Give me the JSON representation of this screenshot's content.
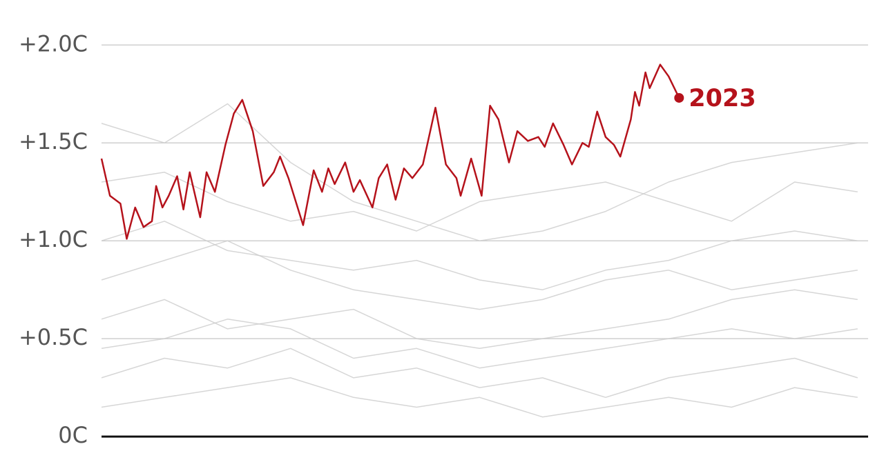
{
  "chart_data": {
    "type": "line",
    "xlim": [
      1,
      366
    ],
    "ylim": [
      -0.13,
      2.23
    ],
    "yticks": [
      {
        "value": 0,
        "label": "0C"
      },
      {
        "value": 0.5,
        "label": "+0.5C"
      },
      {
        "value": 1.0,
        "label": "+1.0C"
      },
      {
        "value": 1.5,
        "label": "+1.5C"
      },
      {
        "value": 2.0,
        "label": "+2.0C"
      }
    ],
    "grid": true,
    "series": [
      {
        "color": "#cccccc",
        "x": [
          1,
          31,
          61,
          91,
          121,
          151,
          181,
          211,
          241,
          271,
          301,
          331,
          361
        ],
        "values": [
          1.6,
          1.5,
          1.7,
          1.4,
          1.2,
          1.1,
          1.0,
          1.05,
          1.15,
          1.3,
          1.4,
          1.45,
          1.5
        ]
      },
      {
        "color": "#cccccc",
        "x": [
          1,
          31,
          61,
          91,
          121,
          151,
          181,
          211,
          241,
          271,
          301,
          331,
          361
        ],
        "values": [
          1.0,
          1.1,
          0.95,
          0.9,
          0.85,
          0.9,
          0.8,
          0.75,
          0.85,
          0.9,
          1.0,
          1.05,
          1.0
        ]
      },
      {
        "color": "#cccccc",
        "x": [
          1,
          31,
          61,
          91,
          121,
          151,
          181,
          211,
          241,
          271,
          301,
          331,
          361
        ],
        "values": [
          0.6,
          0.7,
          0.55,
          0.6,
          0.65,
          0.5,
          0.45,
          0.5,
          0.55,
          0.6,
          0.7,
          0.75,
          0.7
        ]
      },
      {
        "color": "#cccccc",
        "x": [
          1,
          31,
          61,
          91,
          121,
          151,
          181,
          211,
          241,
          271,
          301,
          331,
          361
        ],
        "values": [
          0.3,
          0.4,
          0.35,
          0.45,
          0.3,
          0.35,
          0.25,
          0.3,
          0.2,
          0.3,
          0.35,
          0.4,
          0.3
        ]
      },
      {
        "color": "#cccccc",
        "x": [
          1,
          31,
          61,
          91,
          121,
          151,
          181,
          211,
          241,
          271,
          301,
          331,
          361
        ],
        "values": [
          0.15,
          0.2,
          0.25,
          0.3,
          0.2,
          0.15,
          0.2,
          0.1,
          0.15,
          0.2,
          0.15,
          0.25,
          0.2
        ]
      },
      {
        "color": "#cccccc",
        "x": [
          1,
          31,
          61,
          91,
          121,
          151,
          181,
          211,
          241,
          271,
          301,
          331,
          361
        ],
        "values": [
          0.8,
          0.9,
          1.0,
          0.85,
          0.75,
          0.7,
          0.65,
          0.7,
          0.8,
          0.85,
          0.75,
          0.8,
          0.85
        ]
      },
      {
        "color": "#cccccc",
        "x": [
          1,
          31,
          61,
          91,
          121,
          151,
          181,
          211,
          241,
          271,
          301,
          331,
          361
        ],
        "values": [
          1.3,
          1.35,
          1.2,
          1.1,
          1.15,
          1.05,
          1.2,
          1.25,
          1.3,
          1.2,
          1.1,
          1.3,
          1.25
        ]
      },
      {
        "color": "#cccccc",
        "x": [
          1,
          31,
          61,
          91,
          121,
          151,
          181,
          211,
          241,
          271,
          301,
          331,
          361
        ],
        "values": [
          0.45,
          0.5,
          0.6,
          0.55,
          0.4,
          0.45,
          0.35,
          0.4,
          0.45,
          0.5,
          0.55,
          0.5,
          0.55
        ]
      },
      {
        "name": "2023",
        "color": "#b5121b",
        "x": [
          1,
          5,
          10,
          13,
          17,
          21,
          25,
          27,
          30,
          33,
          37,
          40,
          43,
          48,
          51,
          55,
          60,
          64,
          68,
          73,
          78,
          83,
          86,
          90,
          97,
          102,
          106,
          109,
          112,
          117,
          121,
          124,
          130,
          133,
          137,
          141,
          145,
          149,
          154,
          160,
          165,
          170,
          172,
          177,
          182,
          186,
          190,
          195,
          199,
          204,
          209,
          212,
          216,
          221,
          225,
          230,
          233,
          237,
          241,
          245,
          248,
          253,
          255,
          257,
          260,
          262,
          267,
          271,
          276
        ],
        "values": [
          1.42,
          1.23,
          1.19,
          1.01,
          1.17,
          1.07,
          1.1,
          1.28,
          1.17,
          1.23,
          1.33,
          1.16,
          1.35,
          1.12,
          1.35,
          1.25,
          1.49,
          1.65,
          1.72,
          1.56,
          1.28,
          1.35,
          1.43,
          1.32,
          1.08,
          1.36,
          1.25,
          1.37,
          1.29,
          1.4,
          1.25,
          1.31,
          1.17,
          1.32,
          1.39,
          1.21,
          1.37,
          1.32,
          1.39,
          1.68,
          1.39,
          1.32,
          1.23,
          1.42,
          1.23,
          1.69,
          1.62,
          1.4,
          1.56,
          1.51,
          1.53,
          1.48,
          1.6,
          1.49,
          1.39,
          1.5,
          1.48,
          1.66,
          1.53,
          1.49,
          1.43,
          1.62,
          1.76,
          1.69,
          1.86,
          1.78,
          1.9,
          1.84,
          1.73
        ]
      }
    ]
  }
}
